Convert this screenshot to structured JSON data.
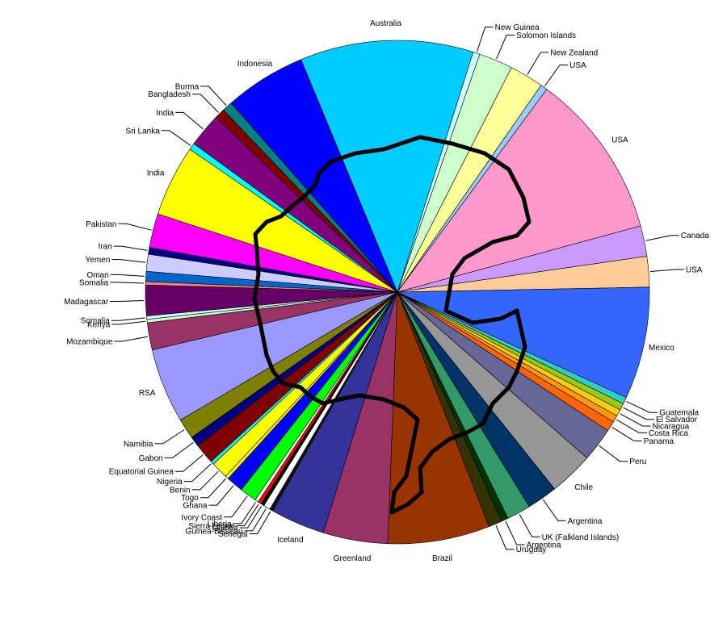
{
  "chart_data": {
    "type": "pie",
    "title": "",
    "start_label": "Australia",
    "slices": [
      {
        "label": "Australia",
        "value": 51,
        "color": "#00CCFF"
      },
      {
        "label": "New Guinea",
        "value": 2,
        "color": "#CCFFFF"
      },
      {
        "label": "Solomon Islands",
        "value": 10,
        "color": "#CCFFCC"
      },
      {
        "label": "New Zealand",
        "value": 10,
        "color": "#FFFF99"
      },
      {
        "label": "USA",
        "value": 2,
        "color": "#99CCFF"
      },
      {
        "label": "USA",
        "value": 49,
        "color": "#FF99CC"
      },
      {
        "label": "Canada",
        "value": 9,
        "color": "#CC99FF"
      },
      {
        "label": "USA",
        "value": 9,
        "color": "#FFCC99"
      },
      {
        "label": "Mexico",
        "value": 33,
        "color": "#3366FF"
      },
      {
        "label": "Guatemala",
        "value": 2,
        "color": "#33CCCC"
      },
      {
        "label": "El Salvador",
        "value": 2,
        "color": "#99CC00"
      },
      {
        "label": "Nicaragua",
        "value": 2,
        "color": "#FFCC00"
      },
      {
        "label": "Costa Rica",
        "value": 2,
        "color": "#FF9900"
      },
      {
        "label": "Panama",
        "value": 3,
        "color": "#FF6600"
      },
      {
        "label": "Peru",
        "value": 10,
        "color": "#666699"
      },
      {
        "label": "Chile",
        "value": 13,
        "color": "#969696"
      },
      {
        "label": "Argentina",
        "value": 9,
        "color": "#003366"
      },
      {
        "label": "UK (Falkland Islands)",
        "value": 7,
        "color": "#339966"
      },
      {
        "label": "Argentina",
        "value": 2,
        "color": "#003300"
      },
      {
        "label": "Uruguay",
        "value": 4,
        "color": "#333300"
      },
      {
        "label": "Brazil",
        "value": 30,
        "color": "#993300"
      },
      {
        "label": "Greenland",
        "value": 19,
        "color": "#993366"
      },
      {
        "label": "Iceland",
        "value": 16,
        "color": "#333399"
      },
      {
        "label": "Senegal",
        "value": 1,
        "color": "#111111"
      },
      {
        "label": "Guinea-Bisseau",
        "value": 2,
        "color": "#FFFFFF"
      },
      {
        "label": "Guinea",
        "value": 1,
        "color": "#000000"
      },
      {
        "label": "Sierra Leone",
        "value": 1,
        "color": "#FF0000"
      },
      {
        "label": "Liberia",
        "value": 1,
        "color": "#FFFFFF"
      },
      {
        "label": "Ivory Coast",
        "value": 5,
        "color": "#00FF00"
      },
      {
        "label": "Ghana",
        "value": 5,
        "color": "#0000FF"
      },
      {
        "label": "Togo",
        "value": 1,
        "color": "#FFFF00"
      },
      {
        "label": "Benin",
        "value": 5,
        "color": "#FFFF00"
      },
      {
        "label": "Nigeria",
        "value": 1,
        "color": "#00FFFF"
      },
      {
        "label": "Equatorial Guinea",
        "value": 6,
        "color": "#800000"
      },
      {
        "label": "Gabon",
        "value": 3,
        "color": "#000080"
      },
      {
        "label": "Namibia",
        "value": 6,
        "color": "#808000"
      },
      {
        "label": "RSA",
        "value": 22,
        "color": "#9999FF"
      },
      {
        "label": "Mozambique",
        "value": 8,
        "color": "#993366"
      },
      {
        "label": "Kenya",
        "value": 1,
        "color": "#CCFFCC"
      },
      {
        "label": "Somalia",
        "value": 1,
        "color": "#CCFFFF"
      },
      {
        "label": "Madagascar",
        "value": 9,
        "color": "#660066"
      },
      {
        "label": "Somalia",
        "value": 1,
        "color": "#FF8080"
      },
      {
        "label": "Oman",
        "value": 3,
        "color": "#0066CC"
      },
      {
        "label": "Yemen",
        "value": 5,
        "color": "#CCCCFF"
      },
      {
        "label": "Iran",
        "value": 2,
        "color": "#000080"
      },
      {
        "label": "Pakistan",
        "value": 10,
        "color": "#FF00FF"
      },
      {
        "label": "India",
        "value": 21,
        "color": "#FFFF00"
      },
      {
        "label": "Sri Lanka",
        "value": 2,
        "color": "#00FFFF"
      },
      {
        "label": "India",
        "value": 10,
        "color": "#800080"
      },
      {
        "label": "Bangladesh",
        "value": 3,
        "color": "#800000"
      },
      {
        "label": "Burma",
        "value": 3,
        "color": "#008080"
      },
      {
        "label": "Indonesia",
        "value": 24,
        "color": "#0000FF"
      }
    ]
  }
}
